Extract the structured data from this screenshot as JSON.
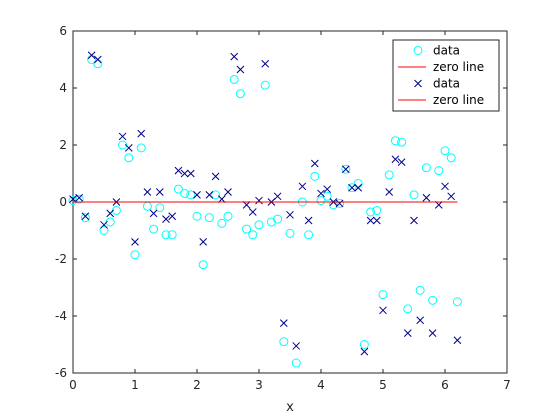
{
  "chart_data": {
    "type": "scatter",
    "title": "",
    "xlabel": "x",
    "ylabel": "",
    "xlim": [
      0,
      7
    ],
    "ylim": [
      -6,
      6
    ],
    "xticks": [
      0,
      1,
      2,
      3,
      4,
      5,
      6,
      7
    ],
    "yticks": [
      -6,
      -4,
      -2,
      0,
      2,
      4,
      6
    ],
    "grid": false,
    "legend_position": "top-right",
    "series": [
      {
        "name": "data",
        "kind": "scatter",
        "marker": "circle",
        "color": "#00ffff",
        "x": [
          0.0,
          0.1,
          0.2,
          0.3,
          0.4,
          0.5,
          0.6,
          0.7,
          0.8,
          0.9,
          1.0,
          1.1,
          1.2,
          1.3,
          1.4,
          1.5,
          1.6,
          1.7,
          1.8,
          1.9,
          2.0,
          2.1,
          2.2,
          2.3,
          2.4,
          2.5,
          2.6,
          2.7,
          2.8,
          2.9,
          3.0,
          3.1,
          3.2,
          3.3,
          3.4,
          3.5,
          3.6,
          3.7,
          3.8,
          3.9,
          4.0,
          4.1,
          4.2,
          4.3,
          4.4,
          4.5,
          4.6,
          4.7,
          4.8,
          4.9,
          5.0,
          5.1,
          5.2,
          5.3,
          5.4,
          5.5,
          5.6,
          5.7,
          5.8,
          5.9,
          6.0,
          6.1,
          6.2
        ],
        "y": [
          0.05,
          0.1,
          -0.55,
          5.0,
          4.85,
          -1.0,
          -0.7,
          -0.3,
          2.0,
          1.55,
          -1.85,
          1.9,
          -0.15,
          -0.95,
          -0.2,
          -1.15,
          -1.15,
          0.45,
          0.3,
          0.25,
          -0.5,
          -2.2,
          -0.55,
          0.25,
          -0.75,
          -0.5,
          4.3,
          3.8,
          -0.95,
          -1.15,
          -0.8,
          4.1,
          -0.7,
          -0.6,
          -4.9,
          -1.1,
          -5.65,
          0.0,
          -1.15,
          0.9,
          0.05,
          0.2,
          -0.1,
          -0.05,
          1.15,
          0.5,
          0.65,
          -5.0,
          -0.35,
          -0.3,
          -3.25,
          0.95,
          2.15,
          2.1,
          -3.75,
          0.25,
          -3.1,
          1.2,
          -3.45,
          1.1,
          1.8,
          1.55,
          -3.5
        ]
      },
      {
        "name": "zero line",
        "kind": "line",
        "color": "#ff0000",
        "x": [
          0,
          6.2
        ],
        "y": [
          0,
          0
        ]
      },
      {
        "name": "data",
        "kind": "scatter",
        "marker": "x",
        "color": "#00008b",
        "x": [
          0.0,
          0.1,
          0.2,
          0.3,
          0.4,
          0.5,
          0.6,
          0.7,
          0.8,
          0.9,
          1.0,
          1.1,
          1.2,
          1.3,
          1.4,
          1.5,
          1.6,
          1.7,
          1.8,
          1.9,
          2.0,
          2.1,
          2.2,
          2.3,
          2.4,
          2.5,
          2.6,
          2.7,
          2.8,
          2.9,
          3.0,
          3.1,
          3.2,
          3.3,
          3.4,
          3.5,
          3.6,
          3.7,
          3.8,
          3.9,
          4.0,
          4.1,
          4.2,
          4.3,
          4.4,
          4.5,
          4.6,
          4.7,
          4.8,
          4.9,
          5.0,
          5.1,
          5.2,
          5.3,
          5.4,
          5.5,
          5.6,
          5.7,
          5.8,
          5.9,
          6.0,
          6.1,
          6.2
        ],
        "y": [
          0.1,
          0.15,
          -0.5,
          5.15,
          5.0,
          -0.8,
          -0.4,
          0.0,
          2.3,
          1.9,
          -1.4,
          2.4,
          0.35,
          -0.4,
          0.35,
          -0.6,
          -0.5,
          1.1,
          1.0,
          1.0,
          0.25,
          -1.4,
          0.25,
          0.9,
          0.1,
          0.35,
          5.1,
          4.65,
          -0.1,
          -0.35,
          0.05,
          4.85,
          0.0,
          0.2,
          -4.25,
          -0.45,
          -5.05,
          0.55,
          -0.65,
          1.35,
          0.3,
          0.45,
          0.0,
          -0.05,
          1.15,
          0.5,
          0.5,
          -5.25,
          -0.65,
          -0.65,
          -3.8,
          0.35,
          1.5,
          1.4,
          -4.6,
          -0.65,
          -4.15,
          0.15,
          -4.6,
          -0.1,
          0.55,
          0.2,
          -4.85
        ]
      },
      {
        "name": "zero line",
        "kind": "line",
        "color": "#ff0000",
        "x": [
          0,
          6.2
        ],
        "y": [
          0,
          0
        ]
      }
    ]
  }
}
